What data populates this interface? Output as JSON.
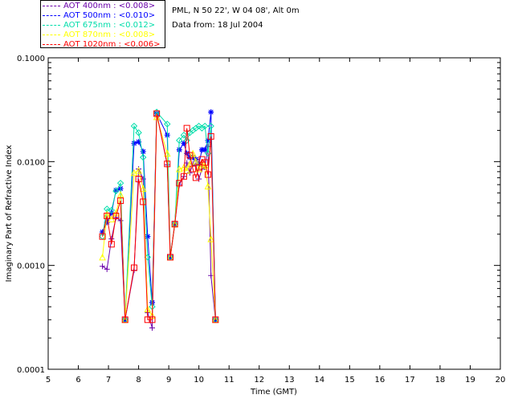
{
  "header": {
    "site_line": "PML, N 50 22', W 04 08', Alt 0m",
    "date_line": "Data from: 18 Jul 2004"
  },
  "legend": [
    {
      "label": "AOT  400nm : <0.008>",
      "color": "#6a00aa"
    },
    {
      "label": "AOT  500nm : <0.010>",
      "color": "#0000ff"
    },
    {
      "label": "AOT  675nm : <0.012>",
      "color": "#00ddaa"
    },
    {
      "label": "AOT  870nm : <0.008>",
      "color": "#ffff00"
    },
    {
      "label": "AOT 1020nm : <0.006>",
      "color": "#ff0000"
    }
  ],
  "chart_data": {
    "type": "line",
    "xlabel": "Time (GMT)",
    "ylabel": "Imaginary Part of Refractive Index",
    "xlim": [
      5,
      20
    ],
    "ylim": [
      0.0001,
      0.1
    ],
    "yscale": "log",
    "x_ticks": [
      "5",
      "6",
      "7",
      "8",
      "9",
      "10",
      "11",
      "12",
      "13",
      "14",
      "15",
      "16",
      "17",
      "18",
      "19",
      "20"
    ],
    "y_ticks": [
      "0.0001",
      "0.0010",
      "0.0100",
      "0.1000"
    ],
    "y_tick_values": [
      0.0001,
      0.001,
      0.01,
      0.1
    ],
    "series": [
      {
        "name": "AOT  400nm : <0.008>",
        "color": "#6a00aa",
        "marker": "plus",
        "x": [
          6.8,
          6.95,
          7.1,
          7.25,
          7.4,
          7.55,
          7.85,
          8.0,
          8.15,
          8.3,
          8.45,
          8.6,
          8.95,
          9.05,
          9.2,
          9.35,
          9.5,
          9.6,
          9.7,
          9.8,
          9.9,
          10.0,
          10.1,
          10.2,
          10.3,
          10.4,
          10.55
        ],
        "y": [
          0.00098,
          0.00092,
          0.0018,
          0.0029,
          0.0027,
          0.0003,
          0.0009,
          0.0085,
          0.0068,
          0.00035,
          0.00025,
          0.029,
          0.0093,
          0.0012,
          0.0025,
          0.006,
          0.0072,
          0.0097,
          0.0078,
          0.0095,
          0.0092,
          0.0068,
          0.0085,
          0.0088,
          0.014,
          0.0008,
          0.0003
        ]
      },
      {
        "name": "AOT  500nm : <0.010>",
        "color": "#0000ff",
        "marker": "star",
        "x": [
          6.8,
          6.95,
          7.1,
          7.25,
          7.4,
          7.55,
          7.85,
          8.0,
          8.15,
          8.3,
          8.45,
          8.6,
          8.95,
          9.05,
          9.2,
          9.35,
          9.5,
          9.6,
          9.7,
          9.8,
          9.9,
          10.0,
          10.1,
          10.2,
          10.3,
          10.4,
          10.55
        ],
        "y": [
          0.0021,
          0.0026,
          0.0032,
          0.0053,
          0.0055,
          0.0003,
          0.015,
          0.0155,
          0.0125,
          0.0019,
          0.00044,
          0.029,
          0.018,
          0.0012,
          0.0025,
          0.013,
          0.015,
          0.012,
          0.011,
          0.011,
          0.0105,
          0.0095,
          0.013,
          0.013,
          0.016,
          0.03,
          0.0003
        ]
      },
      {
        "name": "AOT  675nm : <0.012>",
        "color": "#00ddaa",
        "marker": "diamond",
        "x": [
          6.8,
          6.95,
          7.1,
          7.25,
          7.4,
          7.55,
          7.85,
          8.0,
          8.15,
          8.3,
          8.45,
          8.6,
          8.95,
          9.05,
          9.2,
          9.35,
          9.5,
          9.6,
          9.7,
          9.8,
          9.9,
          10.0,
          10.1,
          10.2,
          10.3,
          10.4,
          10.55
        ],
        "y": [
          0.0019,
          0.0035,
          0.0034,
          0.0052,
          0.0062,
          0.0003,
          0.022,
          0.019,
          0.011,
          0.0012,
          0.0004,
          0.03,
          0.023,
          0.0012,
          0.0025,
          0.016,
          0.018,
          0.016,
          0.019,
          0.02,
          0.021,
          0.022,
          0.021,
          0.022,
          0.012,
          0.022,
          0.0003
        ]
      },
      {
        "name": "AOT  870nm : <0.008>",
        "color": "#ffff00",
        "marker": "triangle",
        "x": [
          6.8,
          6.95,
          7.1,
          7.25,
          7.4,
          7.55,
          7.85,
          8.0,
          8.15,
          8.3,
          8.45,
          8.6,
          8.95,
          9.05,
          9.2,
          9.35,
          9.5,
          9.6,
          9.7,
          9.8,
          9.9,
          10.0,
          10.1,
          10.2,
          10.3,
          10.4,
          10.55
        ],
        "y": [
          0.0012,
          0.0031,
          0.0028,
          0.0032,
          0.0048,
          0.0003,
          0.0078,
          0.0082,
          0.0055,
          0.00038,
          0.00033,
          0.027,
          0.012,
          0.0012,
          0.0025,
          0.0085,
          0.0088,
          0.0082,
          0.0095,
          0.012,
          0.01,
          0.0085,
          0.0095,
          0.0092,
          0.0058,
          0.0018,
          0.0003
        ]
      },
      {
        "name": "AOT 1020nm : <0.006>",
        "color": "#ff0000",
        "marker": "square",
        "x": [
          6.8,
          6.95,
          7.1,
          7.25,
          7.4,
          7.55,
          7.85,
          8.0,
          8.15,
          8.3,
          8.45,
          8.6,
          8.95,
          9.05,
          9.2,
          9.35,
          9.5,
          9.6,
          9.7,
          9.8,
          9.9,
          10.0,
          10.1,
          10.2,
          10.3,
          10.4,
          10.55
        ],
        "y": [
          0.0019,
          0.003,
          0.0016,
          0.003,
          0.0042,
          0.0003,
          0.00095,
          0.0068,
          0.0041,
          0.0003,
          0.0003,
          0.029,
          0.0095,
          0.0012,
          0.0025,
          0.0062,
          0.0072,
          0.021,
          0.0115,
          0.0085,
          0.007,
          0.0088,
          0.0105,
          0.0098,
          0.0075,
          0.0175,
          0.0003
        ]
      }
    ]
  }
}
